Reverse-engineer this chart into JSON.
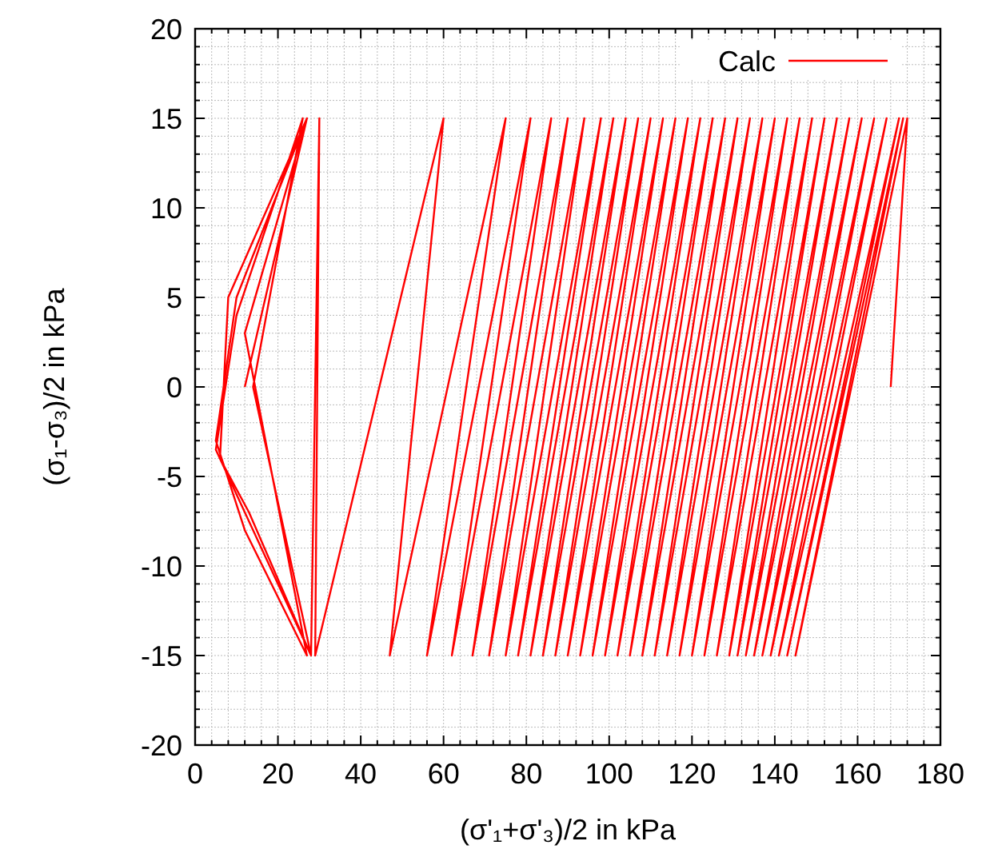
{
  "chart_data": {
    "type": "line",
    "xlabel": "(σ'₁+σ'₃)/2 in kPa",
    "ylabel": "(σ₁-σ₃)/2 in kPa",
    "xlim": [
      0,
      180
    ],
    "ylim": [
      -20,
      20
    ],
    "xticks": [
      0,
      {
        "value": 4,
        "label": null
      },
      {
        "value": 8,
        "label": null
      },
      {
        "value": 12,
        "label": null
      },
      {
        "value": 16,
        "label": null
      },
      20,
      {
        "value": 24,
        "label": null
      },
      {
        "value": 28,
        "label": null
      },
      {
        "value": 32,
        "label": null
      },
      {
        "value": 36,
        "label": null
      },
      40,
      {
        "value": 44,
        "label": null
      },
      {
        "value": 48,
        "label": null
      },
      {
        "value": 52,
        "label": null
      },
      {
        "value": 56,
        "label": null
      },
      60,
      {
        "value": 64,
        "label": null
      },
      {
        "value": 68,
        "label": null
      },
      {
        "value": 72,
        "label": null
      },
      {
        "value": 76,
        "label": null
      },
      80,
      {
        "value": 84,
        "label": null
      },
      {
        "value": 88,
        "label": null
      },
      {
        "value": 92,
        "label": null
      },
      {
        "value": 96,
        "label": null
      },
      100,
      {
        "value": 104,
        "label": null
      },
      {
        "value": 108,
        "label": null
      },
      {
        "value": 112,
        "label": null
      },
      {
        "value": 116,
        "label": null
      },
      120,
      {
        "value": 124,
        "label": null
      },
      {
        "value": 128,
        "label": null
      },
      {
        "value": 132,
        "label": null
      },
      {
        "value": 136,
        "label": null
      },
      140,
      {
        "value": 144,
        "label": null
      },
      {
        "value": 148,
        "label": null
      },
      {
        "value": 152,
        "label": null
      },
      {
        "value": 156,
        "label": null
      },
      160,
      {
        "value": 164,
        "label": null
      },
      {
        "value": 168,
        "label": null
      },
      {
        "value": 172,
        "label": null
      },
      {
        "value": 176,
        "label": null
      },
      180
    ],
    "yticks": [
      -20,
      {
        "value": -19,
        "label": null
      },
      {
        "value": -18,
        "label": null
      },
      {
        "value": -17,
        "label": null
      },
      {
        "value": -16,
        "label": null
      },
      -15,
      {
        "value": -14,
        "label": null
      },
      {
        "value": -13,
        "label": null
      },
      {
        "value": -12,
        "label": null
      },
      {
        "value": -11,
        "label": null
      },
      -10,
      {
        "value": -9,
        "label": null
      },
      {
        "value": -8,
        "label": null
      },
      {
        "value": -7,
        "label": null
      },
      {
        "value": -6,
        "label": null
      },
      -5,
      {
        "value": -4,
        "label": null
      },
      {
        "value": -3,
        "label": null
      },
      {
        "value": -2,
        "label": null
      },
      {
        "value": -1,
        "label": null
      },
      0,
      {
        "value": 1,
        "label": null
      },
      {
        "value": 2,
        "label": null
      },
      {
        "value": 3,
        "label": null
      },
      {
        "value": 4,
        "label": null
      },
      5,
      {
        "value": 6,
        "label": null
      },
      {
        "value": 7,
        "label": null
      },
      {
        "value": 8,
        "label": null
      },
      {
        "value": 9,
        "label": null
      },
      10,
      {
        "value": 11,
        "label": null
      },
      {
        "value": 12,
        "label": null
      },
      {
        "value": 13,
        "label": null
      },
      {
        "value": 14,
        "label": null
      },
      15,
      {
        "value": 16,
        "label": null
      },
      {
        "value": 17,
        "label": null
      },
      {
        "value": 18,
        "label": null
      },
      {
        "value": 19,
        "label": null
      },
      20
    ],
    "grid": true,
    "legend": "top right",
    "line_style": "solid",
    "series": [
      {
        "name": "Calc",
        "color": "#ff0000",
        "x": [
          12,
          27,
          10,
          5,
          12,
          27,
          12,
          27,
          8,
          6,
          13,
          28,
          14,
          26,
          10,
          5,
          14,
          28,
          30,
          29,
          60,
          47,
          75,
          56,
          81,
          62,
          86,
          67,
          90,
          71,
          94,
          75,
          98,
          78,
          101,
          81,
          104,
          84,
          107,
          87,
          110,
          90,
          113,
          93,
          116,
          96,
          119,
          99,
          122,
          102,
          125,
          105,
          128,
          108,
          131,
          111,
          134,
          114,
          137,
          117,
          140,
          120,
          143,
          123,
          146,
          126,
          149,
          129,
          152,
          131,
          155,
          133,
          158,
          135,
          161,
          137,
          164,
          139,
          167,
          141,
          170,
          143,
          171,
          145,
          172,
          168
        ],
        "values": [
          0,
          15,
          5,
          -3,
          -8,
          -15,
          3,
          15,
          5,
          -4,
          -7,
          -15,
          0,
          15,
          4,
          -3.5,
          -8,
          -15,
          15,
          -15,
          15,
          -15,
          15,
          -15,
          15,
          -15,
          15,
          -15,
          15,
          -15,
          15,
          -15,
          15,
          -15,
          15,
          -15,
          15,
          -15,
          15,
          -15,
          15,
          -15,
          15,
          -15,
          15,
          -15,
          15,
          -15,
          15,
          -15,
          15,
          -15,
          15,
          -15,
          15,
          -15,
          15,
          -15,
          15,
          -15,
          15,
          -15,
          15,
          -15,
          15,
          -15,
          15,
          -15,
          15,
          -15,
          15,
          -15,
          15,
          -15,
          15,
          -15,
          15,
          -15,
          15,
          -15,
          15,
          -15,
          15,
          -15,
          15,
          0
        ]
      }
    ]
  }
}
